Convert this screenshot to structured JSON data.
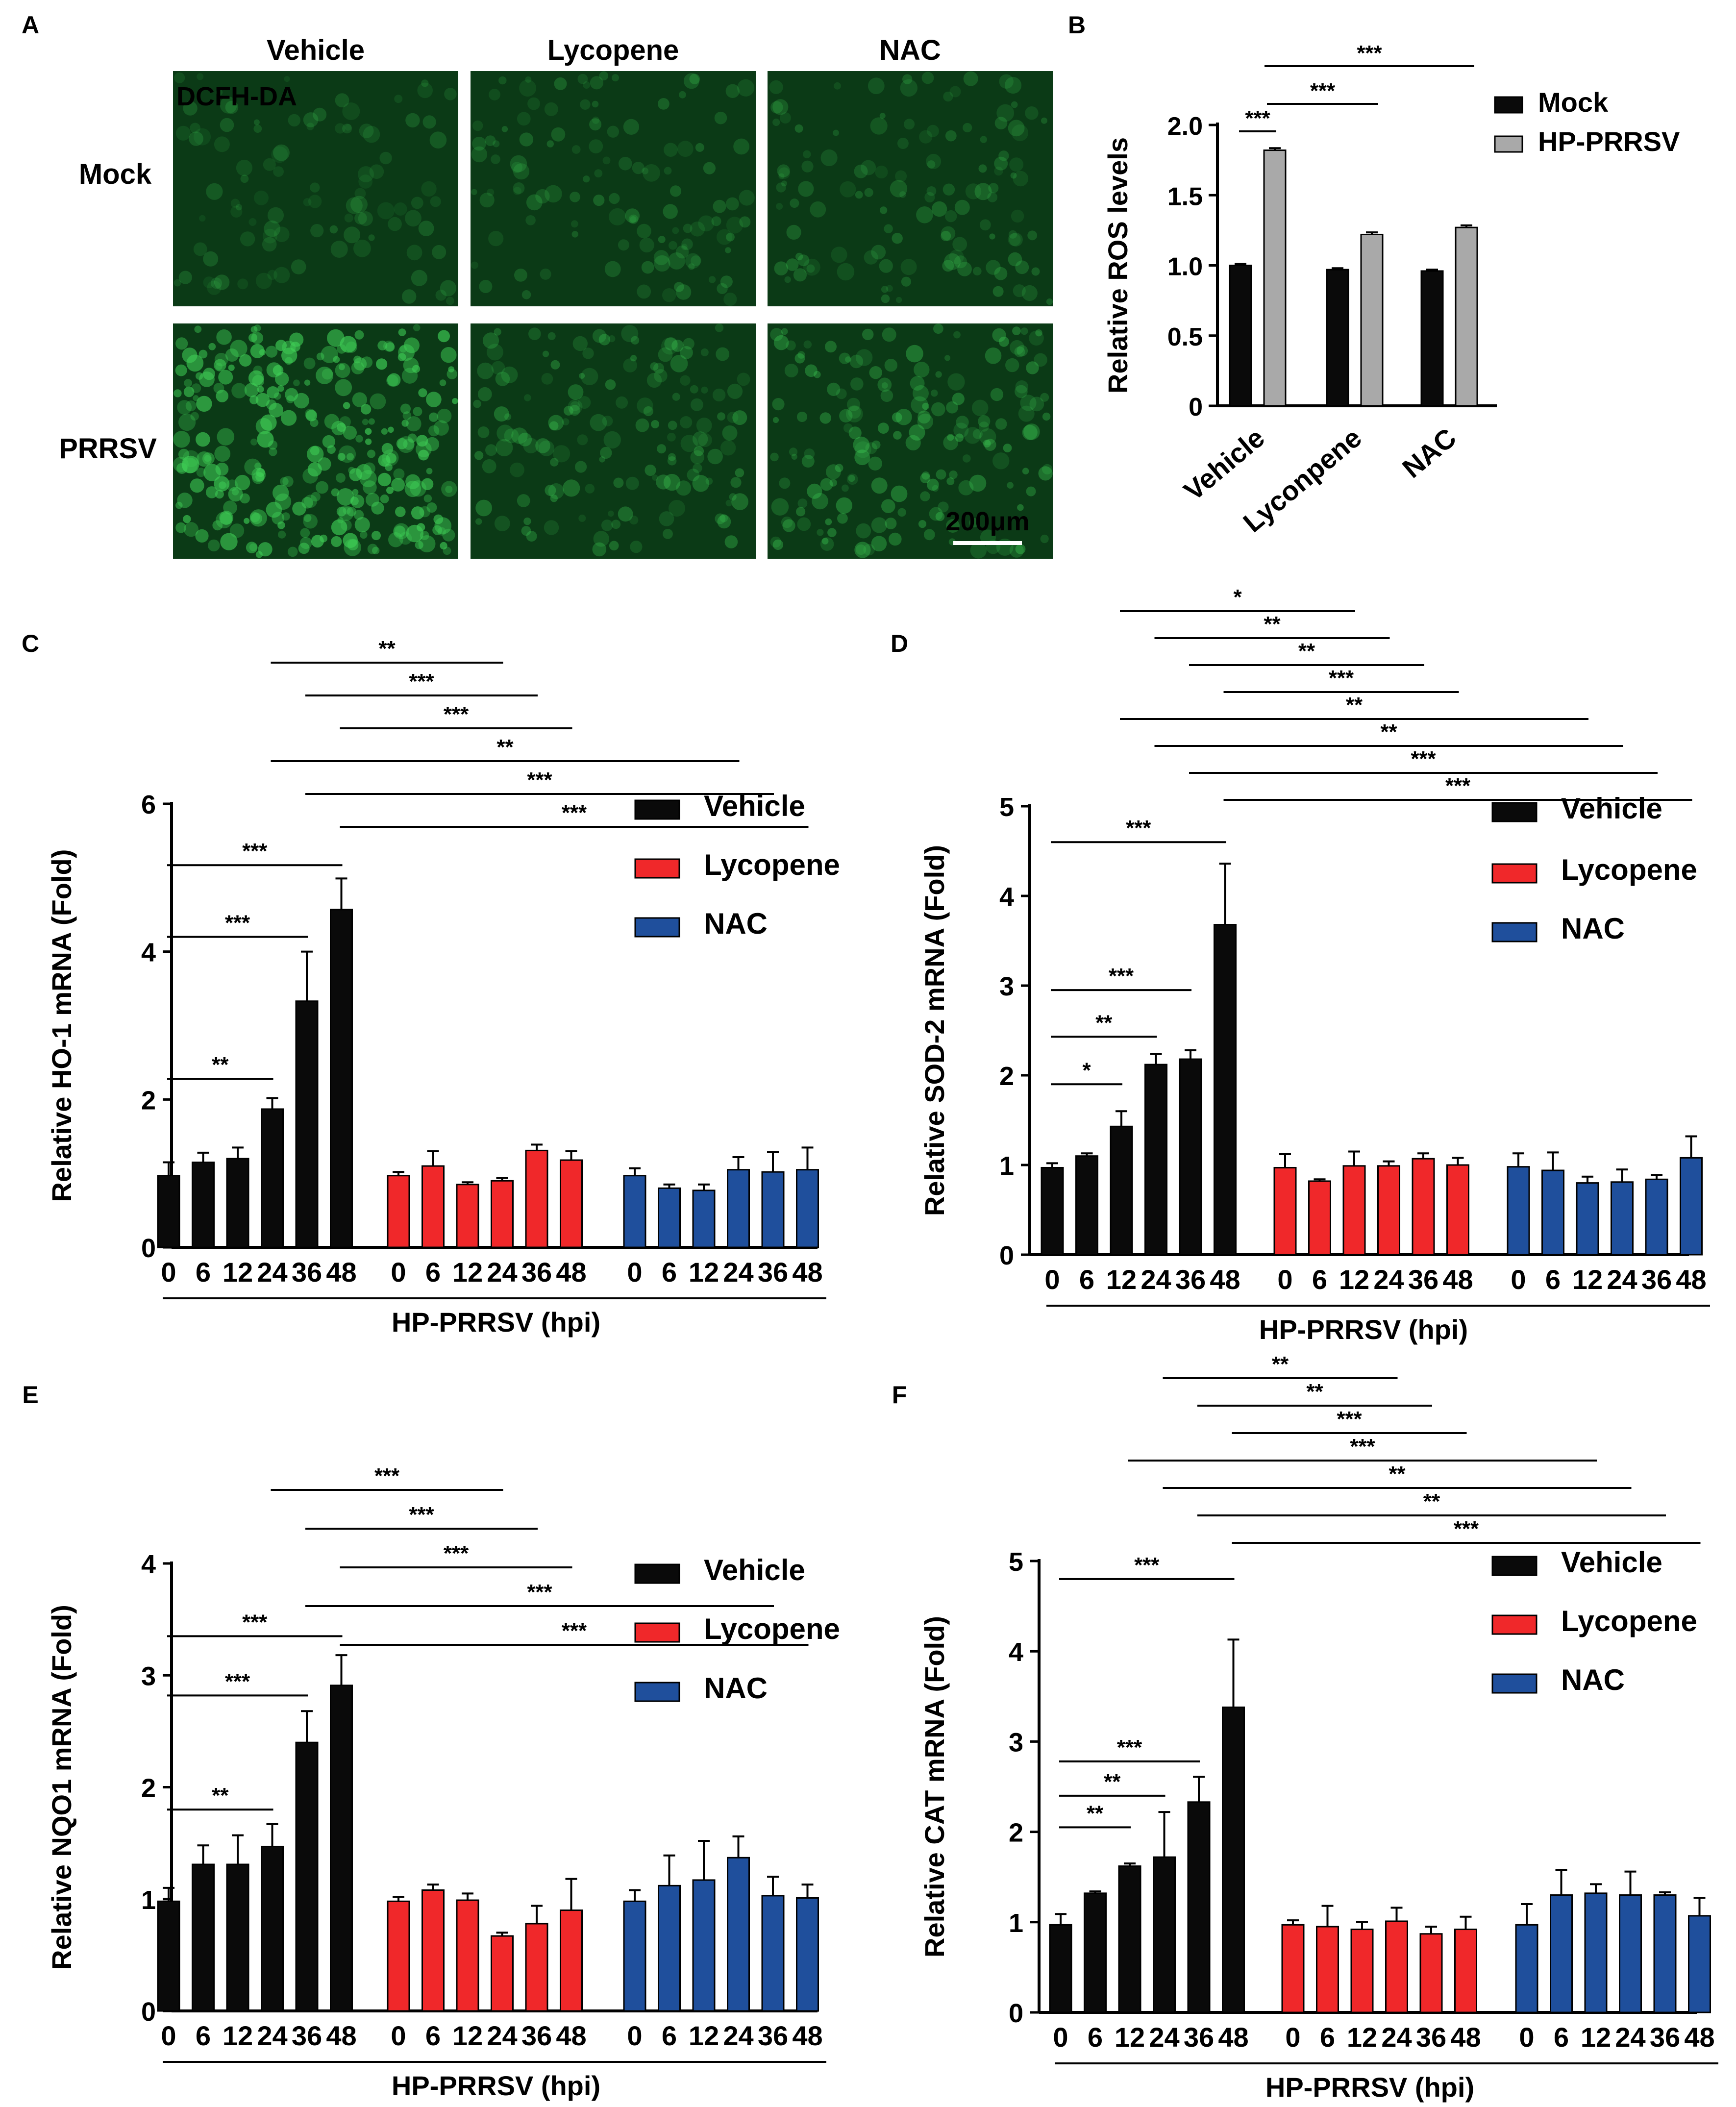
{
  "colors": {
    "black": "#0a0a0a",
    "gray": "#a9a9a9",
    "red": "#f0282a",
    "blue": "#1f4f9c",
    "green_bg": "#0b3a16",
    "green_cells": "#3fcf56",
    "green_text": "#1bb23a"
  },
  "panelA": {
    "label": "A",
    "cols": [
      "Vehicle",
      "Lycopene",
      "NAC"
    ],
    "rows": [
      "Mock",
      "PRRSV"
    ],
    "stain": "DCFH-DA",
    "scale": "200μm",
    "intensity": [
      [
        0.15,
        0.22,
        0.24
      ],
      [
        0.95,
        0.35,
        0.45
      ]
    ]
  },
  "chart_data": [
    {
      "id": "B",
      "type": "bar",
      "panel": "B",
      "categories": [
        "Vehicle",
        "Lyconpene",
        "NAC"
      ],
      "series": [
        {
          "name": "Mock",
          "color": "#0a0a0a",
          "values": [
            1.0,
            0.97,
            0.96
          ],
          "err": [
            0.01,
            0.01,
            0.01
          ]
        },
        {
          "name": "HP-PRRSV",
          "color": "#a9a9a9",
          "values": [
            1.82,
            1.22,
            1.27
          ],
          "err": [
            0.015,
            0.015,
            0.015
          ]
        }
      ],
      "ylabel": "Relative ROS levels",
      "ylim": [
        0,
        2.0
      ],
      "yticks": [
        "0",
        "0.5",
        "1.0",
        "1.5",
        "2.0"
      ],
      "sig": [
        {
          "label": "***",
          "from": 0,
          "to": 1
        },
        {
          "label": "***",
          "from": 1,
          "to": 3
        },
        {
          "label": "***",
          "from": 1,
          "to": 5
        }
      ]
    },
    {
      "id": "C",
      "type": "bar",
      "panel": "C",
      "ylabel": "Relative HO-1 mRNA (Fold)",
      "ylim": [
        0,
        6
      ],
      "yticks": [
        "0",
        "2",
        "4",
        "6"
      ],
      "xticks": [
        "0",
        "6",
        "12",
        "24",
        "36",
        "48"
      ],
      "xlabel": "HP-PRRSV (hpi)",
      "groups": [
        {
          "name": "Vehicle",
          "values": [
            0.97,
            1.15,
            1.2,
            1.87,
            3.33,
            4.57
          ],
          "err": [
            0.18,
            0.13,
            0.15,
            0.15,
            0.67,
            0.42
          ]
        },
        {
          "name": "Lycopene",
          "values": [
            0.97,
            1.1,
            0.85,
            0.9,
            1.31,
            1.18
          ],
          "err": [
            0.05,
            0.2,
            0.03,
            0.04,
            0.08,
            0.12
          ]
        },
        {
          "name": "NAC",
          "values": [
            0.97,
            0.8,
            0.77,
            1.05,
            1.02,
            1.05
          ],
          "err": [
            0.1,
            0.05,
            0.08,
            0.17,
            0.27,
            0.3
          ]
        }
      ],
      "sig_within": [
        {
          "label": "**",
          "to": 3,
          "level": 2.28
        },
        {
          "label": "***",
          "to": 4,
          "level": 4.2
        },
        {
          "label": "***",
          "to": 5,
          "level": 5.17
        }
      ],
      "sig_cross": [
        {
          "label": "**",
          "from": 3,
          "to": 9
        },
        {
          "label": "***",
          "from": 4,
          "to": 10
        },
        {
          "label": "***",
          "from": 5,
          "to": 11
        },
        {
          "label": "**",
          "from": 3,
          "to": 15
        },
        {
          "label": "***",
          "from": 4,
          "to": 16
        },
        {
          "label": "***",
          "from": 5,
          "to": 17
        }
      ]
    },
    {
      "id": "D",
      "type": "bar",
      "panel": "D",
      "ylabel": "Relative SOD-2 mRNA (Fold)",
      "ylim": [
        0,
        5
      ],
      "yticks": [
        "0",
        "1",
        "2",
        "3",
        "4",
        "5"
      ],
      "xticks": [
        "0",
        "6",
        "12",
        "24",
        "36",
        "48"
      ],
      "xlabel": "HP-PRRSV (hpi)",
      "groups": [
        {
          "name": "Vehicle",
          "values": [
            0.97,
            1.1,
            1.43,
            2.12,
            2.18,
            3.68
          ],
          "err": [
            0.05,
            0.03,
            0.17,
            0.12,
            0.1,
            0.68
          ]
        },
        {
          "name": "Lycopene",
          "values": [
            0.97,
            0.82,
            0.99,
            0.99,
            1.07,
            1.0
          ],
          "err": [
            0.15,
            0.02,
            0.16,
            0.05,
            0.06,
            0.08
          ]
        },
        {
          "name": "NAC",
          "values": [
            0.98,
            0.94,
            0.8,
            0.81,
            0.84,
            1.08
          ],
          "err": [
            0.15,
            0.2,
            0.07,
            0.14,
            0.05,
            0.24
          ]
        }
      ],
      "sig_within": [
        {
          "label": "*",
          "to": 2,
          "level": 1.9
        },
        {
          "label": "**",
          "to": 3,
          "level": 2.43
        },
        {
          "label": "***",
          "to": 4,
          "level": 2.95
        },
        {
          "label": "***",
          "to": 5,
          "level": 4.6
        }
      ],
      "sig_cross": [
        {
          "label": "*",
          "from": 2,
          "to": 8
        },
        {
          "label": "**",
          "from": 3,
          "to": 9
        },
        {
          "label": "**",
          "from": 4,
          "to": 10
        },
        {
          "label": "***",
          "from": 5,
          "to": 11
        },
        {
          "label": "**",
          "from": 2,
          "to": 14
        },
        {
          "label": "**",
          "from": 3,
          "to": 15
        },
        {
          "label": "***",
          "from": 4,
          "to": 16
        },
        {
          "label": "***",
          "from": 5,
          "to": 17
        }
      ]
    },
    {
      "id": "E",
      "type": "bar",
      "panel": "E",
      "ylabel": "Relative NQO1 mRNA (Fold)",
      "ylim": [
        0,
        4
      ],
      "yticks": [
        "0",
        "1",
        "2",
        "3",
        "4"
      ],
      "xticks": [
        "0",
        "6",
        "12",
        "24",
        "36",
        "48"
      ],
      "xlabel": "HP-PRRSV (hpi)",
      "groups": [
        {
          "name": "Vehicle",
          "values": [
            0.98,
            1.31,
            1.31,
            1.47,
            2.4,
            2.91
          ],
          "err": [
            0.12,
            0.17,
            0.26,
            0.2,
            0.28,
            0.27
          ]
        },
        {
          "name": "Lycopene",
          "values": [
            0.98,
            1.08,
            0.99,
            0.67,
            0.78,
            0.9
          ],
          "err": [
            0.04,
            0.05,
            0.06,
            0.03,
            0.16,
            0.28
          ]
        },
        {
          "name": "NAC",
          "values": [
            0.98,
            1.12,
            1.17,
            1.37,
            1.03,
            1.01
          ],
          "err": [
            0.1,
            0.27,
            0.35,
            0.19,
            0.17,
            0.12
          ]
        }
      ],
      "sig_within": [
        {
          "label": "**",
          "to": 3,
          "level": 1.8
        },
        {
          "label": "***",
          "to": 4,
          "level": 2.82
        },
        {
          "label": "***",
          "to": 5,
          "level": 3.35
        }
      ],
      "sig_cross": [
        {
          "label": "***",
          "from": 3,
          "to": 9
        },
        {
          "label": "***",
          "from": 4,
          "to": 10
        },
        {
          "label": "***",
          "from": 5,
          "to": 11
        },
        {
          "label": "***",
          "from": 4,
          "to": 16
        },
        {
          "label": "***",
          "from": 5,
          "to": 17
        }
      ]
    },
    {
      "id": "F",
      "type": "bar",
      "panel": "F",
      "ylabel": "Relative CAT mRNA (Fold)",
      "ylim": [
        0,
        5
      ],
      "yticks": [
        "0",
        "1",
        "2",
        "3",
        "4",
        "5"
      ],
      "xticks": [
        "0",
        "6",
        "12",
        "24",
        "36",
        "48"
      ],
      "xlabel": "HP-PRRSV (hpi)",
      "groups": [
        {
          "name": "Vehicle",
          "values": [
            0.97,
            1.32,
            1.62,
            1.72,
            2.33,
            3.38
          ],
          "err": [
            0.12,
            0.02,
            0.03,
            0.5,
            0.28,
            0.75
          ]
        },
        {
          "name": "Lycopene",
          "values": [
            0.97,
            0.95,
            0.92,
            1.01,
            0.87,
            0.92
          ],
          "err": [
            0.05,
            0.23,
            0.08,
            0.15,
            0.08,
            0.14
          ]
        },
        {
          "name": "NAC",
          "values": [
            0.97,
            1.3,
            1.32,
            1.3,
            1.3,
            1.07
          ],
          "err": [
            0.23,
            0.28,
            0.1,
            0.26,
            0.03,
            0.2
          ]
        }
      ],
      "sig_within": [
        {
          "label": "**",
          "to": 2,
          "level": 2.05
        },
        {
          "label": "**",
          "to": 3,
          "level": 2.4
        },
        {
          "label": "***",
          "to": 4,
          "level": 2.78
        },
        {
          "label": "***",
          "to": 5,
          "level": 4.8
        }
      ],
      "sig_cross": [
        {
          "label": "**",
          "from": 3,
          "to": 9
        },
        {
          "label": "**",
          "from": 4,
          "to": 10
        },
        {
          "label": "***",
          "from": 5,
          "to": 11
        },
        {
          "label": "***",
          "from": 2,
          "to": 14
        },
        {
          "label": "**",
          "from": 3,
          "to": 15
        },
        {
          "label": "**",
          "from": 4,
          "to": 16
        },
        {
          "label": "***",
          "from": 5,
          "to": 17
        }
      ]
    }
  ],
  "legend_groups": [
    "Vehicle",
    "Lycopene",
    "NAC"
  ]
}
